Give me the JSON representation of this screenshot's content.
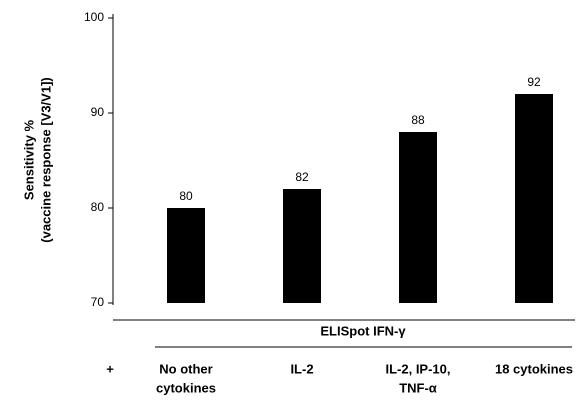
{
  "chart_data": {
    "type": "bar",
    "ylabel": [
      "Sensitivity %",
      "(vaccine response [V3/V1])"
    ],
    "x_group_label": "ELISpot IFN-γ",
    "x_prefix": "+",
    "categories": [
      [
        "No other",
        "cytokines"
      ],
      [
        "IL-2"
      ],
      [
        "IL-2, IP-10,",
        "TNF-α"
      ],
      [
        "18 cytokines"
      ]
    ],
    "values": [
      80,
      82,
      88,
      92
    ],
    "color": "#000000",
    "ylim": [
      70,
      100
    ],
    "yticks": [
      70,
      80,
      90,
      100
    ],
    "grid": false
  }
}
